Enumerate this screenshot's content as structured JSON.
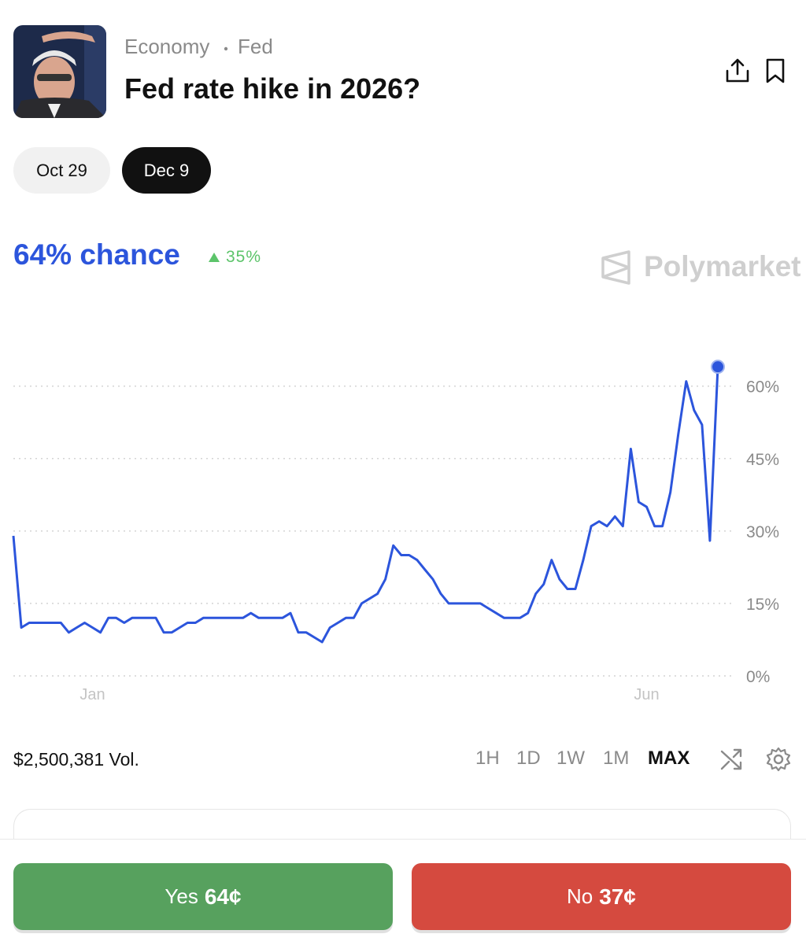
{
  "header": {
    "tags": [
      "Economy",
      "Fed"
    ],
    "title": "Fed rate hike in 2026?"
  },
  "dates": [
    "Oct 29",
    "Dec 9"
  ],
  "active_date": 1,
  "chance": "64% chance",
  "change": "35%",
  "brand": "Polymarket",
  "chart_data": {
    "type": "line",
    "color": "#2c55dc",
    "categories": [
      null,
      null,
      null,
      null,
      null,
      null,
      null,
      null,
      null,
      null,
      "Jan",
      null,
      null,
      null,
      null,
      null,
      null,
      null,
      null,
      null,
      null,
      null,
      null,
      null,
      null,
      null,
      null,
      null,
      null,
      null,
      null,
      null,
      null,
      null,
      null,
      null,
      null,
      null,
      null,
      null,
      null,
      null,
      null,
      null,
      null,
      null,
      null,
      null,
      null,
      null,
      null,
      null,
      null,
      null,
      null,
      null,
      null,
      null,
      null,
      null,
      null,
      null,
      null,
      null,
      null,
      null,
      null,
      null,
      null,
      null,
      null,
      null,
      null,
      null,
      null,
      null,
      null,
      null,
      null,
      null,
      "Jun",
      null,
      null,
      null,
      null,
      null,
      null,
      null,
      null,
      null
    ],
    "values": [
      29,
      10,
      11,
      11,
      11,
      11,
      11,
      9,
      10,
      11,
      10,
      9,
      12,
      12,
      11,
      12,
      12,
      12,
      12,
      9,
      9,
      10,
      11,
      11,
      12,
      12,
      12,
      12,
      12,
      12,
      13,
      12,
      12,
      12,
      12,
      13,
      9,
      9,
      8,
      7,
      10,
      11,
      12,
      12,
      15,
      16,
      17,
      20,
      27,
      25,
      25,
      24,
      22,
      20,
      17,
      15,
      15,
      15,
      15,
      15,
      14,
      13,
      12,
      12,
      12,
      13,
      17,
      19,
      24,
      20,
      18,
      18,
      24,
      31,
      32,
      31,
      33,
      31,
      47,
      36,
      35,
      31,
      31,
      38,
      50,
      61,
      55,
      52,
      28,
      64
    ],
    "ylim": [
      0,
      65
    ],
    "yticks": [
      {
        "value": 0,
        "label": "0%"
      },
      {
        "value": 15,
        "label": "15%"
      },
      {
        "value": 30,
        "label": "30%"
      },
      {
        "value": 45,
        "label": "45%"
      },
      {
        "value": 60,
        "label": "60%"
      }
    ],
    "grid": true
  },
  "volume": "$2,500,381 Vol.",
  "ranges": [
    "1H",
    "1D",
    "1W",
    "1M",
    "MAX"
  ],
  "active_range": 4,
  "buttons": [
    {
      "label": "Yes",
      "price": "64¢"
    },
    {
      "label": "No",
      "price": "37¢"
    }
  ]
}
